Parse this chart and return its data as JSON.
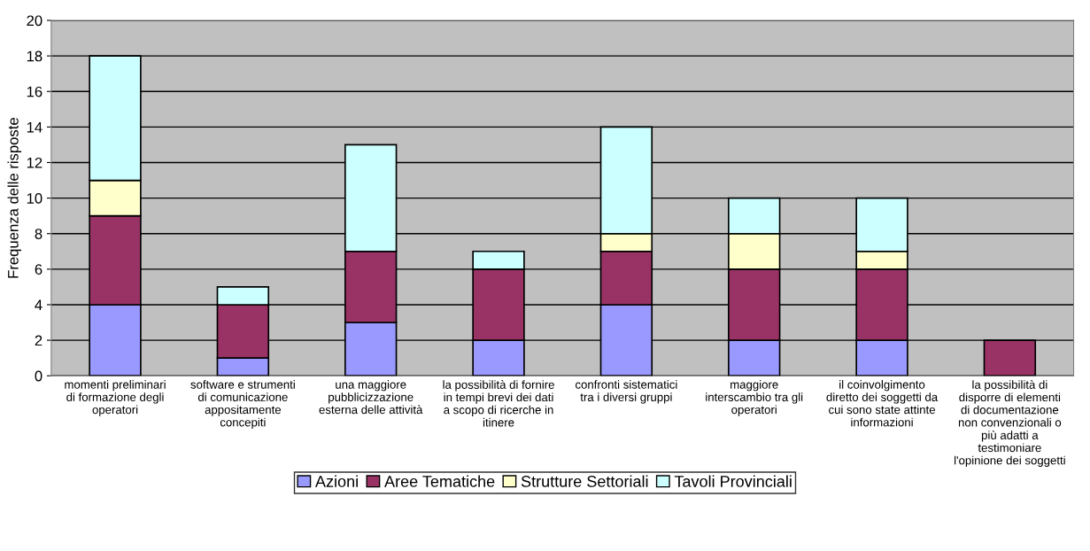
{
  "chart_data": {
    "type": "bar",
    "stacked": true,
    "ylabel": "Frequenza delle risposte",
    "categories": [
      "momenti preliminari\ndi formazione degli\noperatori",
      "software e strumenti\ndi comunicazione\nappositamente\nconcepiti",
      "una maggiore\npubblicizzazione\nesterna delle attività",
      "la possibilità di fornire\nin tempi brevi dei dati\na scopo di ricerche in\nitinere",
      "confronti sistematici\ntra i diversi gruppi",
      "maggiore\ninterscambio tra gli\noperatori",
      "il coinvolgimento\ndiretto dei soggetti da\ncui sono state attinte\ninformazioni",
      "la possibilità di\ndisporre di elementi\ndi documentazione\nnon convenzionali o\npiù adatti a\ntestimoniare\nl'opinione dei soggetti"
    ],
    "series": [
      {
        "name": "Azioni",
        "color": "#9999ff",
        "values": [
          4,
          1,
          3,
          2,
          4,
          2,
          2,
          0
        ]
      },
      {
        "name": "Aree Tematiche",
        "color": "#993366",
        "values": [
          5,
          3,
          4,
          4,
          3,
          4,
          4,
          2
        ]
      },
      {
        "name": "Strutture Settoriali",
        "color": "#ffffcc",
        "values": [
          2,
          0,
          0,
          0,
          1,
          2,
          1,
          0
        ]
      },
      {
        "name": "Tavoli Provinciali",
        "color": "#ccffff",
        "values": [
          7,
          1,
          6,
          1,
          6,
          2,
          3,
          0
        ]
      }
    ],
    "ylim": [
      0,
      20
    ],
    "yticks": [
      0,
      2,
      4,
      6,
      8,
      10,
      12,
      14,
      16,
      18,
      20
    ],
    "grid": "y",
    "legend": "bottom"
  }
}
